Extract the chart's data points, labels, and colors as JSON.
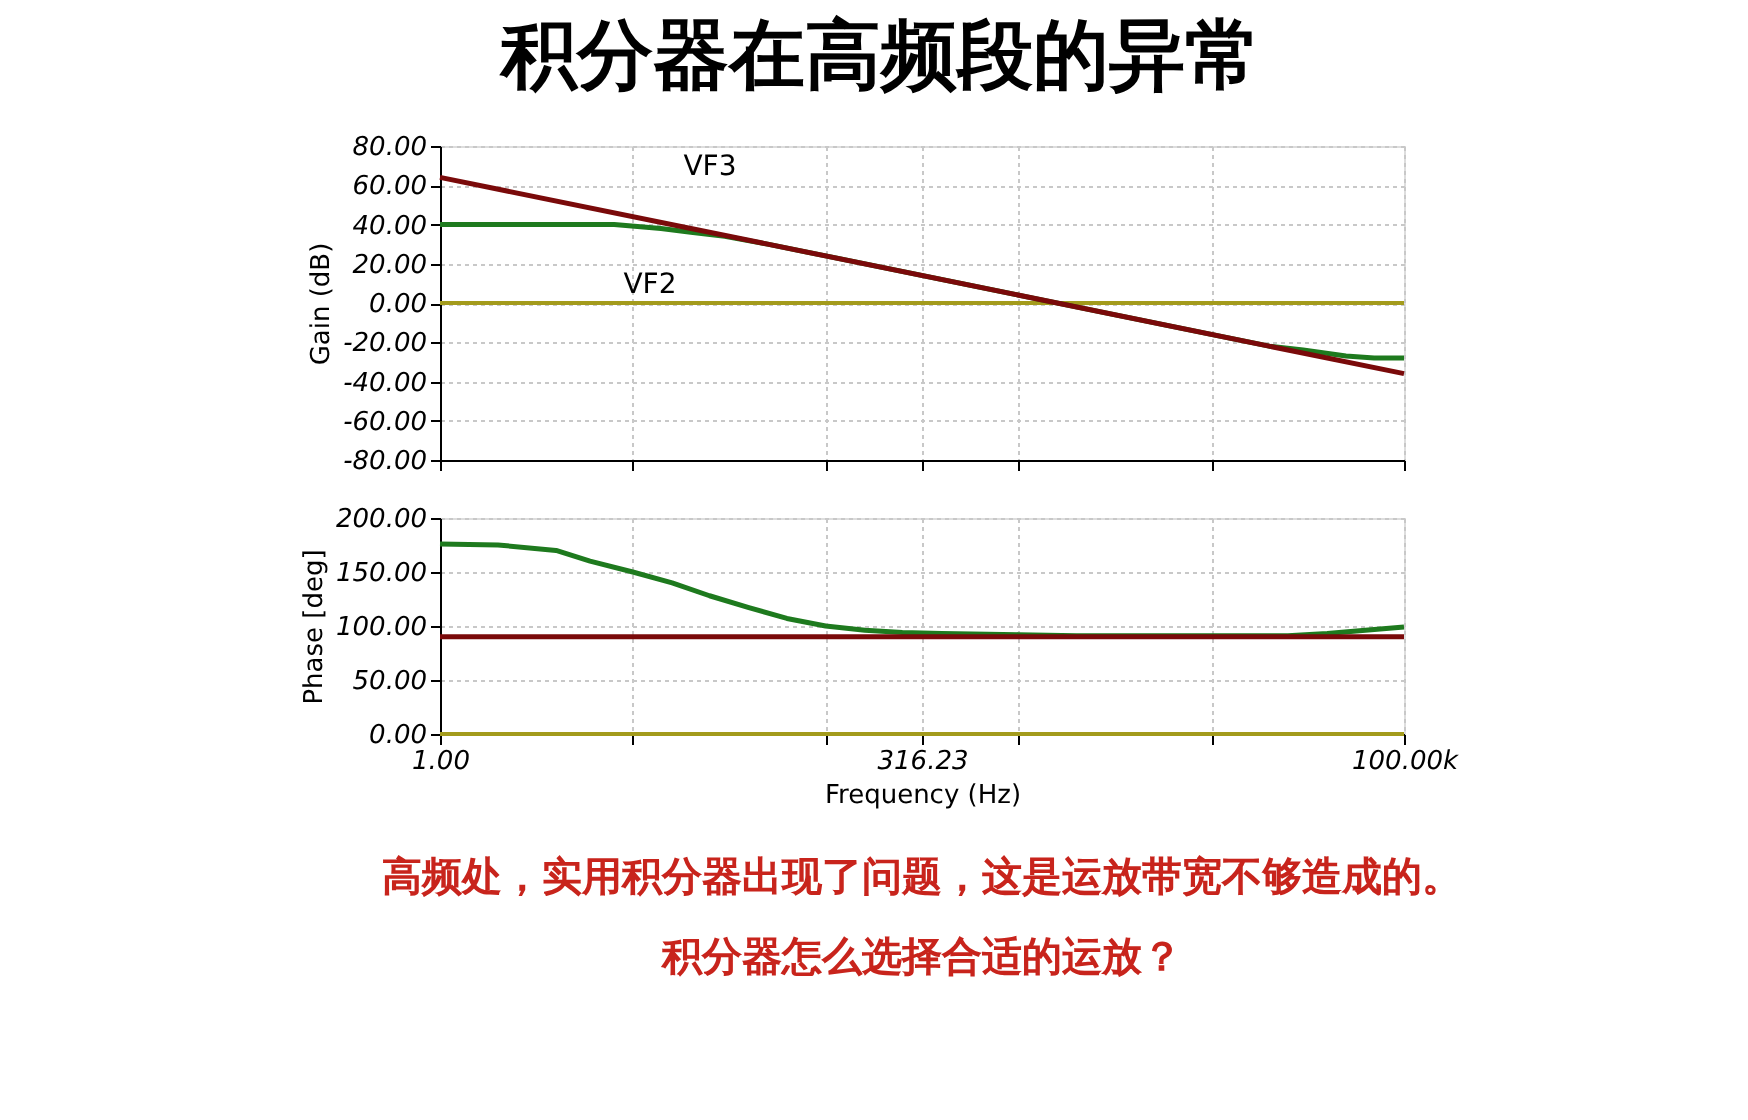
{
  "chart_data": [
    {
      "type": "line",
      "title": "积分器在高频段的异常",
      "ylabel": "Gain (dB)",
      "log": "x",
      "grid": true,
      "tick_labels": "y",
      "xlim": [
        1,
        100000
      ],
      "xticks": [
        {
          "value": 1,
          "label": null
        },
        {
          "value": 10,
          "label": null
        },
        {
          "value": 100,
          "label": null
        },
        {
          "value": 316.23,
          "label": null
        },
        {
          "value": 1000,
          "label": null
        },
        {
          "value": 10000,
          "label": null
        },
        {
          "value": 100000,
          "label": null
        }
      ],
      "ylim": [
        -80,
        80
      ],
      "yticks": [
        {
          "value": -80,
          "label": "-80.00"
        },
        {
          "value": -60,
          "label": "-60.00"
        },
        {
          "value": -40,
          "label": "-40.00"
        },
        {
          "value": -20,
          "label": "-20.00"
        },
        {
          "value": 0,
          "label": "0.00"
        },
        {
          "value": 20,
          "label": "20.00"
        },
        {
          "value": 40,
          "label": "40.00"
        },
        {
          "value": 60,
          "label": "60.00"
        },
        {
          "value": 80,
          "label": "80.00"
        }
      ],
      "ref_lines": [
        {
          "axis": "y",
          "value": 0,
          "color": "#a39b1c"
        }
      ],
      "series": [
        {
          "name": "VF2",
          "color": "#1e7a1e",
          "x": [
            1,
            2,
            4,
            8,
            14,
            20,
            30,
            50,
            100,
            1000,
            10000,
            20000,
            30000,
            50000,
            70000,
            100000
          ],
          "values": [
            40,
            40,
            40,
            40,
            38,
            36,
            34,
            30,
            24,
            4,
            -16,
            -22,
            -24,
            -27,
            -28,
            -28
          ]
        },
        {
          "name": "VF3",
          "color": "#7a0a0a",
          "x": [
            1,
            100000
          ],
          "values": [
            64,
            -36
          ]
        }
      ]
    },
    {
      "type": "line",
      "xlabel": "Frequency (Hz)",
      "ylabel": "Phase [deg]",
      "log": "x",
      "grid": true,
      "xlim": [
        1,
        100000
      ],
      "xticks": [
        {
          "value": 1,
          "label": "1.00"
        },
        {
          "value": 10,
          "label": null
        },
        {
          "value": 100,
          "label": null
        },
        {
          "value": 316.23,
          "label": "316.23"
        },
        {
          "value": 1000,
          "label": null
        },
        {
          "value": 10000,
          "label": null
        },
        {
          "value": 100000,
          "label": "100.00k"
        }
      ],
      "ylim": [
        0,
        200
      ],
      "yticks": [
        {
          "value": 0,
          "label": "0.00"
        },
        {
          "value": 50,
          "label": "50.00"
        },
        {
          "value": 100,
          "label": "100.00"
        },
        {
          "value": 150,
          "label": "150.00"
        },
        {
          "value": 200,
          "label": "200.00"
        }
      ],
      "ref_lines": [
        {
          "axis": "y",
          "value": 0,
          "color": "#a39b1c"
        }
      ],
      "annotations": [
        "高频处，实用积分器出现了问题，这是运放带宽不够造成的。",
        "积分器怎么选择合适的运放？"
      ],
      "series": [
        {
          "color": "#1e7a1e",
          "x": [
            1,
            2,
            4,
            6,
            10,
            16,
            25,
            40,
            63,
            100,
            160,
            250,
            400,
            1000,
            2000,
            5000,
            10000,
            25000,
            40000,
            63000,
            100000
          ],
          "values": [
            176,
            175,
            170,
            160,
            150,
            140,
            128,
            117,
            107,
            100,
            96,
            94,
            93,
            92,
            91,
            91,
            91,
            91,
            93,
            96,
            99
          ]
        },
        {
          "color": "#7a0a0a",
          "x": [
            1,
            100000
          ],
          "values": [
            90,
            90
          ]
        }
      ]
    }
  ]
}
